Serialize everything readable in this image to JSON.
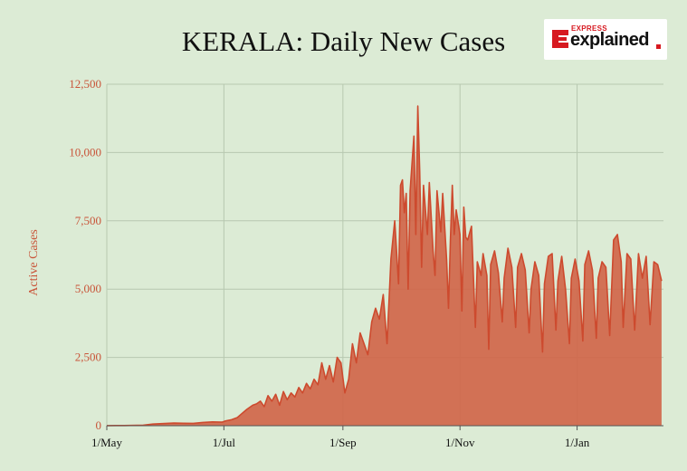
{
  "header": {
    "title": "KERALA: Daily New Cases",
    "logo_small": "EXPRESS",
    "logo_big": "explained"
  },
  "colors": {
    "background": "#dcebd5",
    "area_fill": "#d0664a",
    "line": "#cd4a2e",
    "grid": "#b7c8b0",
    "tick_label": "#c9553a"
  },
  "chart_data": {
    "type": "area",
    "title": "KERALA: Daily New Cases",
    "xlabel": "",
    "ylabel": "Active Cases",
    "ylim": [
      0,
      12500
    ],
    "xlim": [
      "2020-05-01",
      "2021-02-15"
    ],
    "grid": true,
    "x_ticks": [
      {
        "date": "2020-05-01",
        "label": "1/May"
      },
      {
        "date": "2020-07-01",
        "label": "1/Jul"
      },
      {
        "date": "2020-09-01",
        "label": "1/Sep"
      },
      {
        "date": "2020-11-01",
        "label": "1/Nov"
      },
      {
        "date": "2021-01-01",
        "label": "1/Jan"
      }
    ],
    "y_ticks": [
      {
        "value": 0,
        "label": "0"
      },
      {
        "value": 2500,
        "label": "2,500"
      },
      {
        "value": 5000,
        "label": "5,000"
      },
      {
        "value": 7500,
        "label": "7,500"
      },
      {
        "value": 10000,
        "label": "10,000"
      },
      {
        "value": 12500,
        "label": "12,500"
      }
    ],
    "series": [
      {
        "values": [
          [
            "2020-05-01",
            2
          ],
          [
            "2020-05-10",
            5
          ],
          [
            "2020-05-20",
            20
          ],
          [
            "2020-05-25",
            60
          ],
          [
            "2020-05-31",
            80
          ],
          [
            "2020-06-05",
            95
          ],
          [
            "2020-06-10",
            90
          ],
          [
            "2020-06-15",
            85
          ],
          [
            "2020-06-20",
            120
          ],
          [
            "2020-06-25",
            140
          ],
          [
            "2020-06-30",
            130
          ],
          [
            "2020-07-02",
            180
          ],
          [
            "2020-07-05",
            220
          ],
          [
            "2020-07-08",
            300
          ],
          [
            "2020-07-10",
            420
          ],
          [
            "2020-07-13",
            600
          ],
          [
            "2020-07-16",
            750
          ],
          [
            "2020-07-18",
            800
          ],
          [
            "2020-07-20",
            900
          ],
          [
            "2020-07-22",
            700
          ],
          [
            "2020-07-24",
            1100
          ],
          [
            "2020-07-26",
            900
          ],
          [
            "2020-07-28",
            1150
          ],
          [
            "2020-07-30",
            750
          ],
          [
            "2020-08-01",
            1250
          ],
          [
            "2020-08-03",
            950
          ],
          [
            "2020-08-05",
            1200
          ],
          [
            "2020-08-07",
            1050
          ],
          [
            "2020-08-09",
            1400
          ],
          [
            "2020-08-11",
            1200
          ],
          [
            "2020-08-13",
            1550
          ],
          [
            "2020-08-15",
            1350
          ],
          [
            "2020-08-17",
            1700
          ],
          [
            "2020-08-19",
            1500
          ],
          [
            "2020-08-21",
            2300
          ],
          [
            "2020-08-23",
            1700
          ],
          [
            "2020-08-25",
            2200
          ],
          [
            "2020-08-27",
            1600
          ],
          [
            "2020-08-29",
            2500
          ],
          [
            "2020-08-31",
            2300
          ],
          [
            "2020-09-02",
            1200
          ],
          [
            "2020-09-04",
            1700
          ],
          [
            "2020-09-06",
            3000
          ],
          [
            "2020-09-08",
            2300
          ],
          [
            "2020-09-10",
            3400
          ],
          [
            "2020-09-12",
            3000
          ],
          [
            "2020-09-14",
            2600
          ],
          [
            "2020-09-16",
            3800
          ],
          [
            "2020-09-18",
            4300
          ],
          [
            "2020-09-20",
            3900
          ],
          [
            "2020-09-22",
            4800
          ],
          [
            "2020-09-24",
            3000
          ],
          [
            "2020-09-26",
            6100
          ],
          [
            "2020-09-28",
            7500
          ],
          [
            "2020-09-30",
            5200
          ],
          [
            "2020-10-01",
            8800
          ],
          [
            "2020-10-02",
            9000
          ],
          [
            "2020-10-03",
            7800
          ],
          [
            "2020-10-04",
            8500
          ],
          [
            "2020-10-05",
            5000
          ],
          [
            "2020-10-06",
            8600
          ],
          [
            "2020-10-08",
            10600
          ],
          [
            "2020-10-09",
            7000
          ],
          [
            "2020-10-10",
            11700
          ],
          [
            "2020-10-11",
            9300
          ],
          [
            "2020-10-12",
            5800
          ],
          [
            "2020-10-13",
            8800
          ],
          [
            "2020-10-15",
            7000
          ],
          [
            "2020-10-16",
            8900
          ],
          [
            "2020-10-18",
            6400
          ],
          [
            "2020-10-19",
            5500
          ],
          [
            "2020-10-20",
            8600
          ],
          [
            "2020-10-22",
            7100
          ],
          [
            "2020-10-23",
            8500
          ],
          [
            "2020-10-25",
            6100
          ],
          [
            "2020-10-26",
            4300
          ],
          [
            "2020-10-27",
            6800
          ],
          [
            "2020-10-28",
            8800
          ],
          [
            "2020-10-29",
            7000
          ],
          [
            "2020-10-30",
            7900
          ],
          [
            "2020-11-01",
            7000
          ],
          [
            "2020-11-02",
            4200
          ],
          [
            "2020-11-03",
            8000
          ],
          [
            "2020-11-04",
            6900
          ],
          [
            "2020-11-05",
            6800
          ],
          [
            "2020-11-07",
            7300
          ],
          [
            "2020-11-09",
            3600
          ],
          [
            "2020-11-10",
            6000
          ],
          [
            "2020-11-12",
            5500
          ],
          [
            "2020-11-13",
            6300
          ],
          [
            "2020-11-15",
            5500
          ],
          [
            "2020-11-16",
            2800
          ],
          [
            "2020-11-17",
            5900
          ],
          [
            "2020-11-19",
            6400
          ],
          [
            "2020-11-21",
            5600
          ],
          [
            "2020-11-23",
            3800
          ],
          [
            "2020-11-24",
            5400
          ],
          [
            "2020-11-26",
            6500
          ],
          [
            "2020-11-28",
            5800
          ],
          [
            "2020-11-30",
            3600
          ],
          [
            "2020-12-01",
            5800
          ],
          [
            "2020-12-03",
            6300
          ],
          [
            "2020-12-05",
            5700
          ],
          [
            "2020-12-07",
            3400
          ],
          [
            "2020-12-08",
            5000
          ],
          [
            "2020-12-10",
            6000
          ],
          [
            "2020-12-12",
            5500
          ],
          [
            "2020-12-14",
            2700
          ],
          [
            "2020-12-15",
            5200
          ],
          [
            "2020-12-17",
            6200
          ],
          [
            "2020-12-19",
            6300
          ],
          [
            "2020-12-21",
            3500
          ],
          [
            "2020-12-22",
            5300
          ],
          [
            "2020-12-24",
            6200
          ],
          [
            "2020-12-26",
            5000
          ],
          [
            "2020-12-28",
            3000
          ],
          [
            "2020-12-29",
            5400
          ],
          [
            "2020-12-31",
            6100
          ],
          [
            "2021-01-02",
            5300
          ],
          [
            "2021-01-04",
            3100
          ],
          [
            "2021-01-05",
            5900
          ],
          [
            "2021-01-07",
            6400
          ],
          [
            "2021-01-09",
            5700
          ],
          [
            "2021-01-11",
            3200
          ],
          [
            "2021-01-12",
            5400
          ],
          [
            "2021-01-14",
            6000
          ],
          [
            "2021-01-16",
            5800
          ],
          [
            "2021-01-18",
            3300
          ],
          [
            "2021-01-20",
            6800
          ],
          [
            "2021-01-22",
            7000
          ],
          [
            "2021-01-24",
            6000
          ],
          [
            "2021-01-25",
            3600
          ],
          [
            "2021-01-27",
            6300
          ],
          [
            "2021-01-29",
            6100
          ],
          [
            "2021-01-31",
            3500
          ],
          [
            "2021-02-02",
            6300
          ],
          [
            "2021-02-04",
            5400
          ],
          [
            "2021-02-06",
            6200
          ],
          [
            "2021-02-08",
            3700
          ],
          [
            "2021-02-10",
            6000
          ],
          [
            "2021-02-12",
            5900
          ],
          [
            "2021-02-14",
            5300
          ]
        ]
      }
    ]
  }
}
